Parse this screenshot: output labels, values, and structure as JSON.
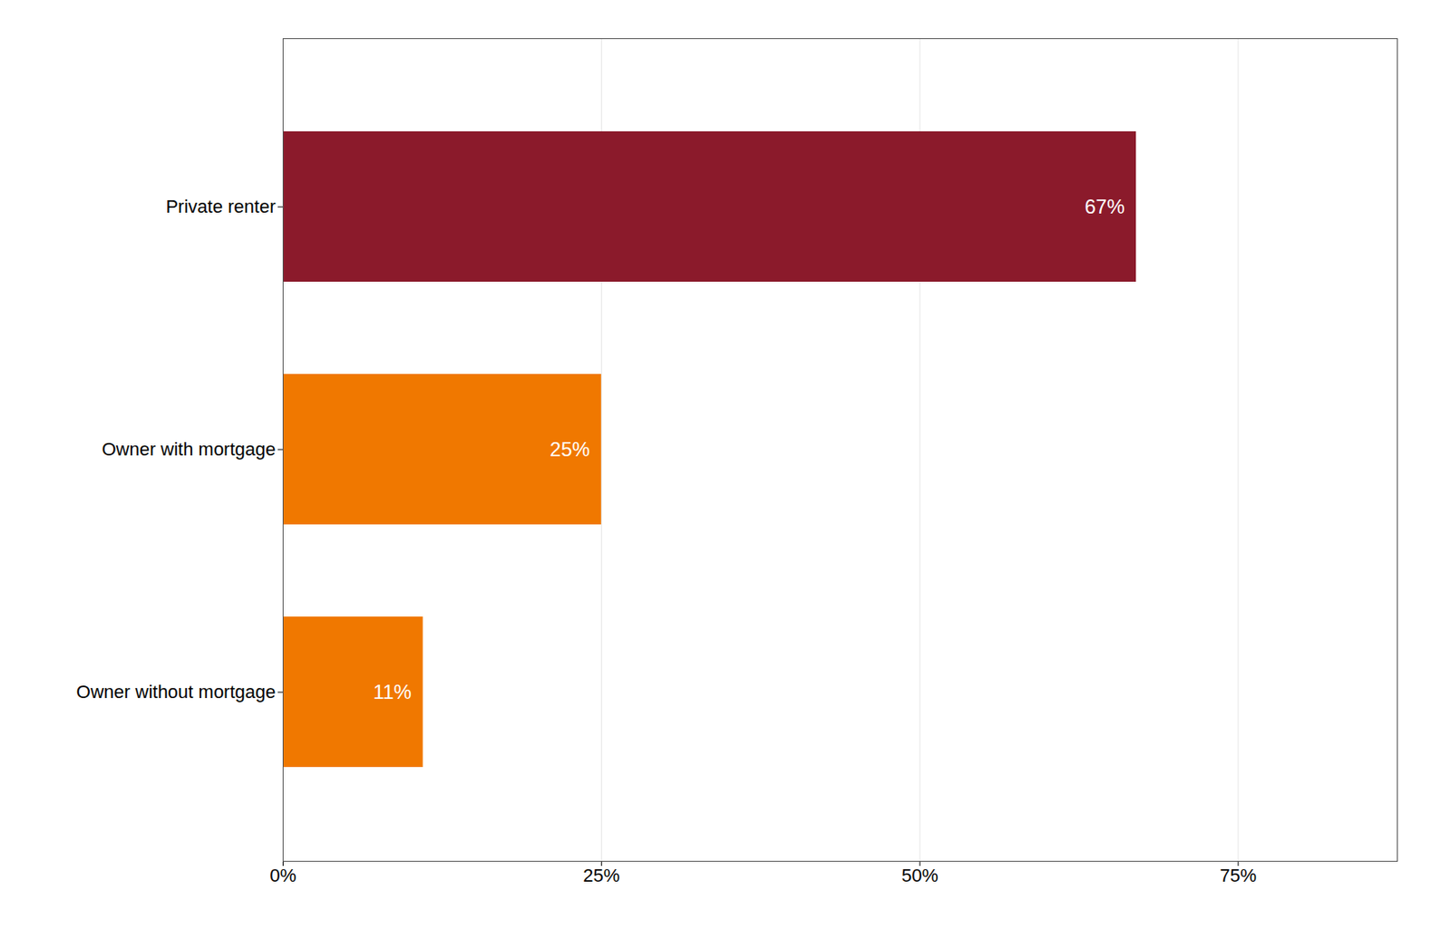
{
  "chart_data": {
    "type": "bar",
    "orientation": "horizontal",
    "categories": [
      "Owner without mortgage",
      "Owner with mortgage",
      "Private renter"
    ],
    "values": [
      11,
      25,
      67
    ],
    "value_labels": [
      "11%",
      "25%",
      "67%"
    ],
    "colors": [
      "#F07800",
      "#F07800",
      "#8B1A2B"
    ],
    "data_labels": true,
    "xlim": [
      0,
      87.5
    ],
    "xticks": [
      {
        "value": 0,
        "label": "0%"
      },
      {
        "value": 25,
        "label": "25%"
      },
      {
        "value": 50,
        "label": "50%"
      },
      {
        "value": 75,
        "label": "75%"
      }
    ],
    "grid": true
  }
}
